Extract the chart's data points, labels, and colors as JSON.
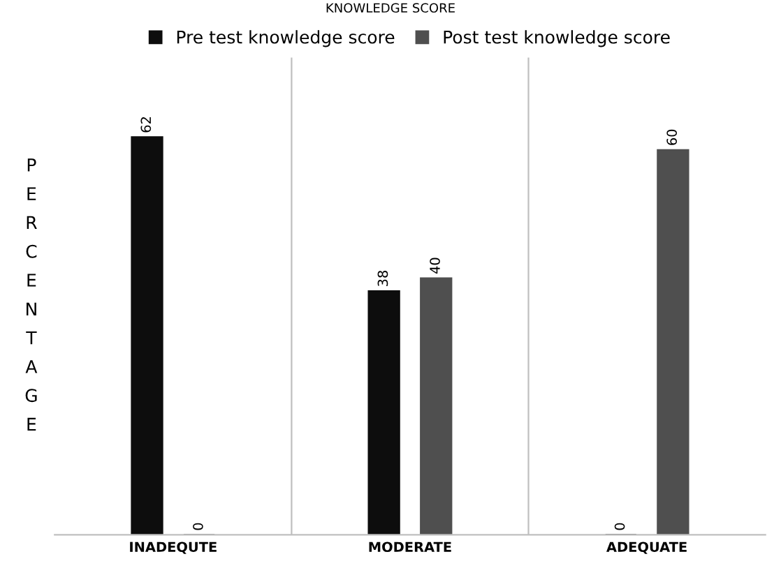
{
  "chart_data": {
    "type": "bar",
    "title": "KNOWLEDGE SCORE",
    "ylabel": "PERCENTAGE",
    "categories": [
      "INADEQUTE",
      "MODERATE",
      "ADEQUATE"
    ],
    "series": [
      {
        "name": "Pre test knowledge score",
        "color": "#0d0d0d",
        "values": [
          62,
          38,
          0
        ]
      },
      {
        "name": "Post test knowledge score",
        "color": "#4f4f4f",
        "values": [
          0,
          40,
          60
        ]
      }
    ],
    "data_labels": true,
    "grid": "x",
    "legend": "top"
  }
}
